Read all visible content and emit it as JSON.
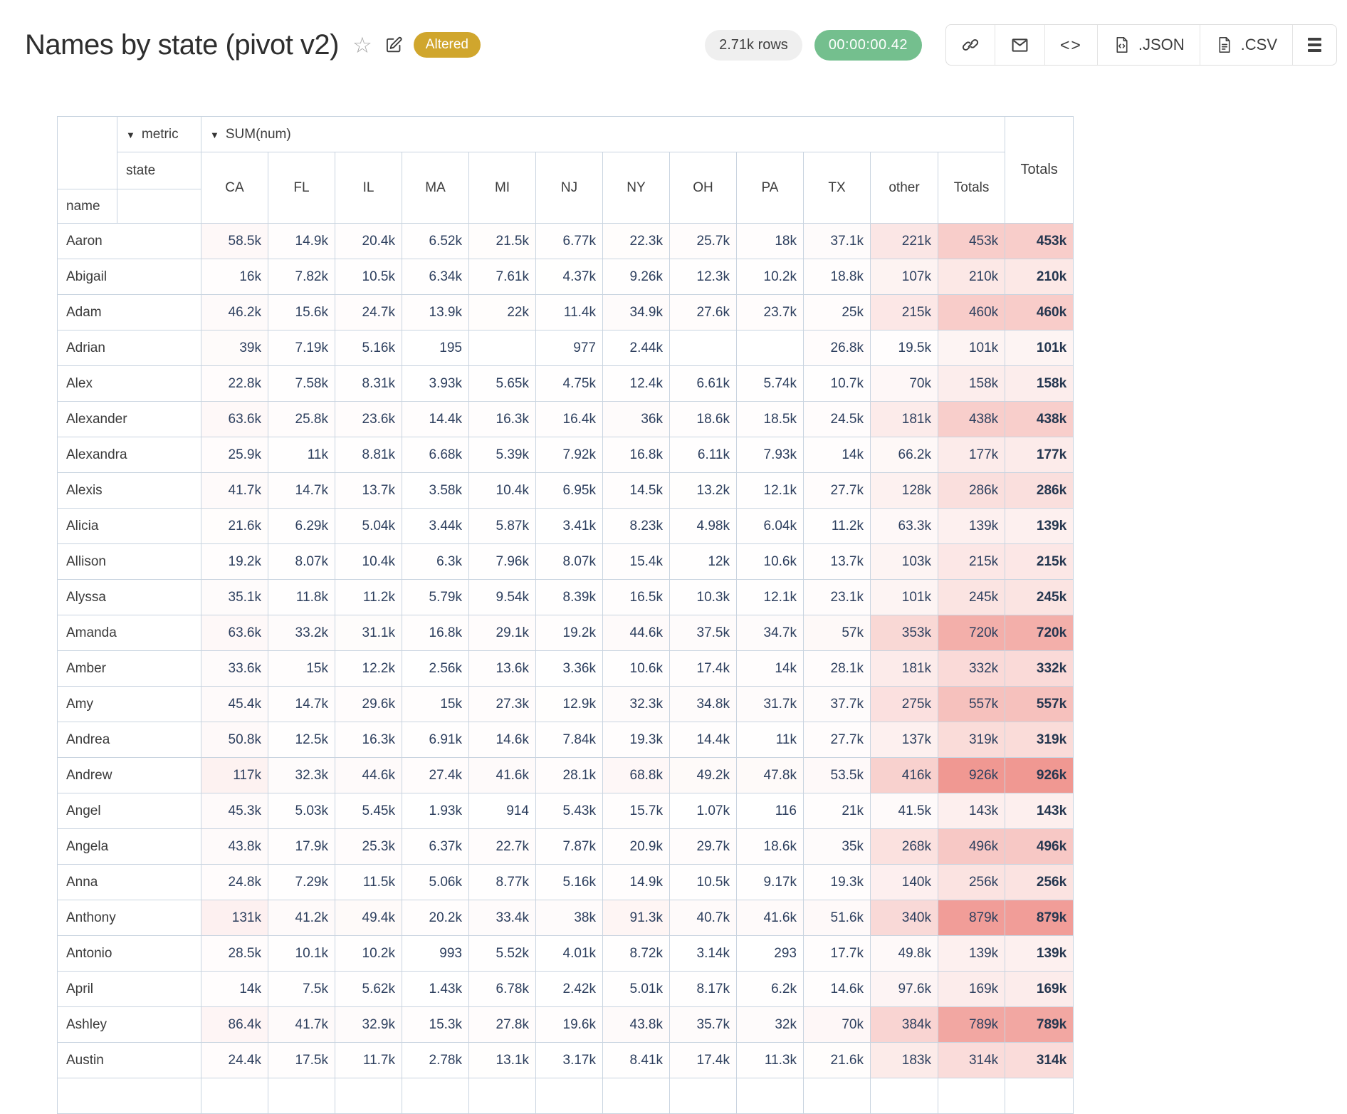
{
  "header": {
    "title": "Names by state (pivot v2)",
    "altered_badge": "Altered",
    "rows_badge": "2.71k rows",
    "timer_badge": "00:00:00.42",
    "toolbar": {
      "json_label": ".JSON",
      "csv_label": ".CSV"
    }
  },
  "icons": {
    "star": "☆",
    "caret_down": "▼",
    "code": "<>"
  },
  "colors": {
    "altered_bg": "#d0a62d",
    "timer_bg": "#74bf8e",
    "rows_pill_bg": "#efefef",
    "heat_salmon": "#f09892",
    "grid_border": "#c9d4e0",
    "number_text": "#2d3f5e"
  },
  "pivot": {
    "metric_label": "metric",
    "metric_value": "SUM(num)",
    "state_label": "state",
    "name_label": "name",
    "totals_label": "Totals",
    "heat_max": 926000,
    "columns": [
      "CA",
      "FL",
      "IL",
      "MA",
      "MI",
      "NJ",
      "NY",
      "OH",
      "PA",
      "TX",
      "other",
      "Totals"
    ],
    "rows": [
      {
        "name": "Aaron",
        "values": [
          "58.5k",
          "14.9k",
          "20.4k",
          "6.52k",
          "21.5k",
          "6.77k",
          "22.3k",
          "25.7k",
          "18k",
          "37.1k",
          "221k",
          "453k"
        ],
        "total": "453k"
      },
      {
        "name": "Abigail",
        "values": [
          "16k",
          "7.82k",
          "10.5k",
          "6.34k",
          "7.61k",
          "4.37k",
          "9.26k",
          "12.3k",
          "10.2k",
          "18.8k",
          "107k",
          "210k"
        ],
        "total": "210k"
      },
      {
        "name": "Adam",
        "values": [
          "46.2k",
          "15.6k",
          "24.7k",
          "13.9k",
          "22k",
          "11.4k",
          "34.9k",
          "27.6k",
          "23.7k",
          "25k",
          "215k",
          "460k"
        ],
        "total": "460k"
      },
      {
        "name": "Adrian",
        "values": [
          "39k",
          "7.19k",
          "5.16k",
          "195",
          "",
          "977",
          "2.44k",
          "",
          "",
          "26.8k",
          "19.5k",
          "101k"
        ],
        "total": "101k"
      },
      {
        "name": "Alex",
        "values": [
          "22.8k",
          "7.58k",
          "8.31k",
          "3.93k",
          "5.65k",
          "4.75k",
          "12.4k",
          "6.61k",
          "5.74k",
          "10.7k",
          "70k",
          "158k"
        ],
        "total": "158k"
      },
      {
        "name": "Alexander",
        "values": [
          "63.6k",
          "25.8k",
          "23.6k",
          "14.4k",
          "16.3k",
          "16.4k",
          "36k",
          "18.6k",
          "18.5k",
          "24.5k",
          "181k",
          "438k"
        ],
        "total": "438k"
      },
      {
        "name": "Alexandra",
        "values": [
          "25.9k",
          "11k",
          "8.81k",
          "6.68k",
          "5.39k",
          "7.92k",
          "16.8k",
          "6.11k",
          "7.93k",
          "14k",
          "66.2k",
          "177k"
        ],
        "total": "177k"
      },
      {
        "name": "Alexis",
        "values": [
          "41.7k",
          "14.7k",
          "13.7k",
          "3.58k",
          "10.4k",
          "6.95k",
          "14.5k",
          "13.2k",
          "12.1k",
          "27.7k",
          "128k",
          "286k"
        ],
        "total": "286k"
      },
      {
        "name": "Alicia",
        "values": [
          "21.6k",
          "6.29k",
          "5.04k",
          "3.44k",
          "5.87k",
          "3.41k",
          "8.23k",
          "4.98k",
          "6.04k",
          "11.2k",
          "63.3k",
          "139k"
        ],
        "total": "139k"
      },
      {
        "name": "Allison",
        "values": [
          "19.2k",
          "8.07k",
          "10.4k",
          "6.3k",
          "7.96k",
          "8.07k",
          "15.4k",
          "12k",
          "10.6k",
          "13.7k",
          "103k",
          "215k"
        ],
        "total": "215k"
      },
      {
        "name": "Alyssa",
        "values": [
          "35.1k",
          "11.8k",
          "11.2k",
          "5.79k",
          "9.54k",
          "8.39k",
          "16.5k",
          "10.3k",
          "12.1k",
          "23.1k",
          "101k",
          "245k"
        ],
        "total": "245k"
      },
      {
        "name": "Amanda",
        "values": [
          "63.6k",
          "33.2k",
          "31.1k",
          "16.8k",
          "29.1k",
          "19.2k",
          "44.6k",
          "37.5k",
          "34.7k",
          "57k",
          "353k",
          "720k"
        ],
        "total": "720k"
      },
      {
        "name": "Amber",
        "values": [
          "33.6k",
          "15k",
          "12.2k",
          "2.56k",
          "13.6k",
          "3.36k",
          "10.6k",
          "17.4k",
          "14k",
          "28.1k",
          "181k",
          "332k"
        ],
        "total": "332k"
      },
      {
        "name": "Amy",
        "values": [
          "45.4k",
          "14.7k",
          "29.6k",
          "15k",
          "27.3k",
          "12.9k",
          "32.3k",
          "34.8k",
          "31.7k",
          "37.7k",
          "275k",
          "557k"
        ],
        "total": "557k"
      },
      {
        "name": "Andrea",
        "values": [
          "50.8k",
          "12.5k",
          "16.3k",
          "6.91k",
          "14.6k",
          "7.84k",
          "19.3k",
          "14.4k",
          "11k",
          "27.7k",
          "137k",
          "319k"
        ],
        "total": "319k"
      },
      {
        "name": "Andrew",
        "values": [
          "117k",
          "32.3k",
          "44.6k",
          "27.4k",
          "41.6k",
          "28.1k",
          "68.8k",
          "49.2k",
          "47.8k",
          "53.5k",
          "416k",
          "926k"
        ],
        "total": "926k"
      },
      {
        "name": "Angel",
        "values": [
          "45.3k",
          "5.03k",
          "5.45k",
          "1.93k",
          "914",
          "5.43k",
          "15.7k",
          "1.07k",
          "116",
          "21k",
          "41.5k",
          "143k"
        ],
        "total": "143k"
      },
      {
        "name": "Angela",
        "values": [
          "43.8k",
          "17.9k",
          "25.3k",
          "6.37k",
          "22.7k",
          "7.87k",
          "20.9k",
          "29.7k",
          "18.6k",
          "35k",
          "268k",
          "496k"
        ],
        "total": "496k"
      },
      {
        "name": "Anna",
        "values": [
          "24.8k",
          "7.29k",
          "11.5k",
          "5.06k",
          "8.77k",
          "5.16k",
          "14.9k",
          "10.5k",
          "9.17k",
          "19.3k",
          "140k",
          "256k"
        ],
        "total": "256k"
      },
      {
        "name": "Anthony",
        "values": [
          "131k",
          "41.2k",
          "49.4k",
          "20.2k",
          "33.4k",
          "38k",
          "91.3k",
          "40.7k",
          "41.6k",
          "51.6k",
          "340k",
          "879k"
        ],
        "total": "879k"
      },
      {
        "name": "Antonio",
        "values": [
          "28.5k",
          "10.1k",
          "10.2k",
          "993",
          "5.52k",
          "4.01k",
          "8.72k",
          "3.14k",
          "293",
          "17.7k",
          "49.8k",
          "139k"
        ],
        "total": "139k"
      },
      {
        "name": "April",
        "values": [
          "14k",
          "7.5k",
          "5.62k",
          "1.43k",
          "6.78k",
          "2.42k",
          "5.01k",
          "8.17k",
          "6.2k",
          "14.6k",
          "97.6k",
          "169k"
        ],
        "total": "169k"
      },
      {
        "name": "Ashley",
        "values": [
          "86.4k",
          "41.7k",
          "32.9k",
          "15.3k",
          "27.8k",
          "19.6k",
          "43.8k",
          "35.7k",
          "32k",
          "70k",
          "384k",
          "789k"
        ],
        "total": "789k"
      },
      {
        "name": "Austin",
        "values": [
          "24.4k",
          "17.5k",
          "11.7k",
          "2.78k",
          "13.1k",
          "3.17k",
          "8.41k",
          "17.4k",
          "11.3k",
          "21.6k",
          "183k",
          "314k"
        ],
        "total": "314k"
      }
    ]
  }
}
